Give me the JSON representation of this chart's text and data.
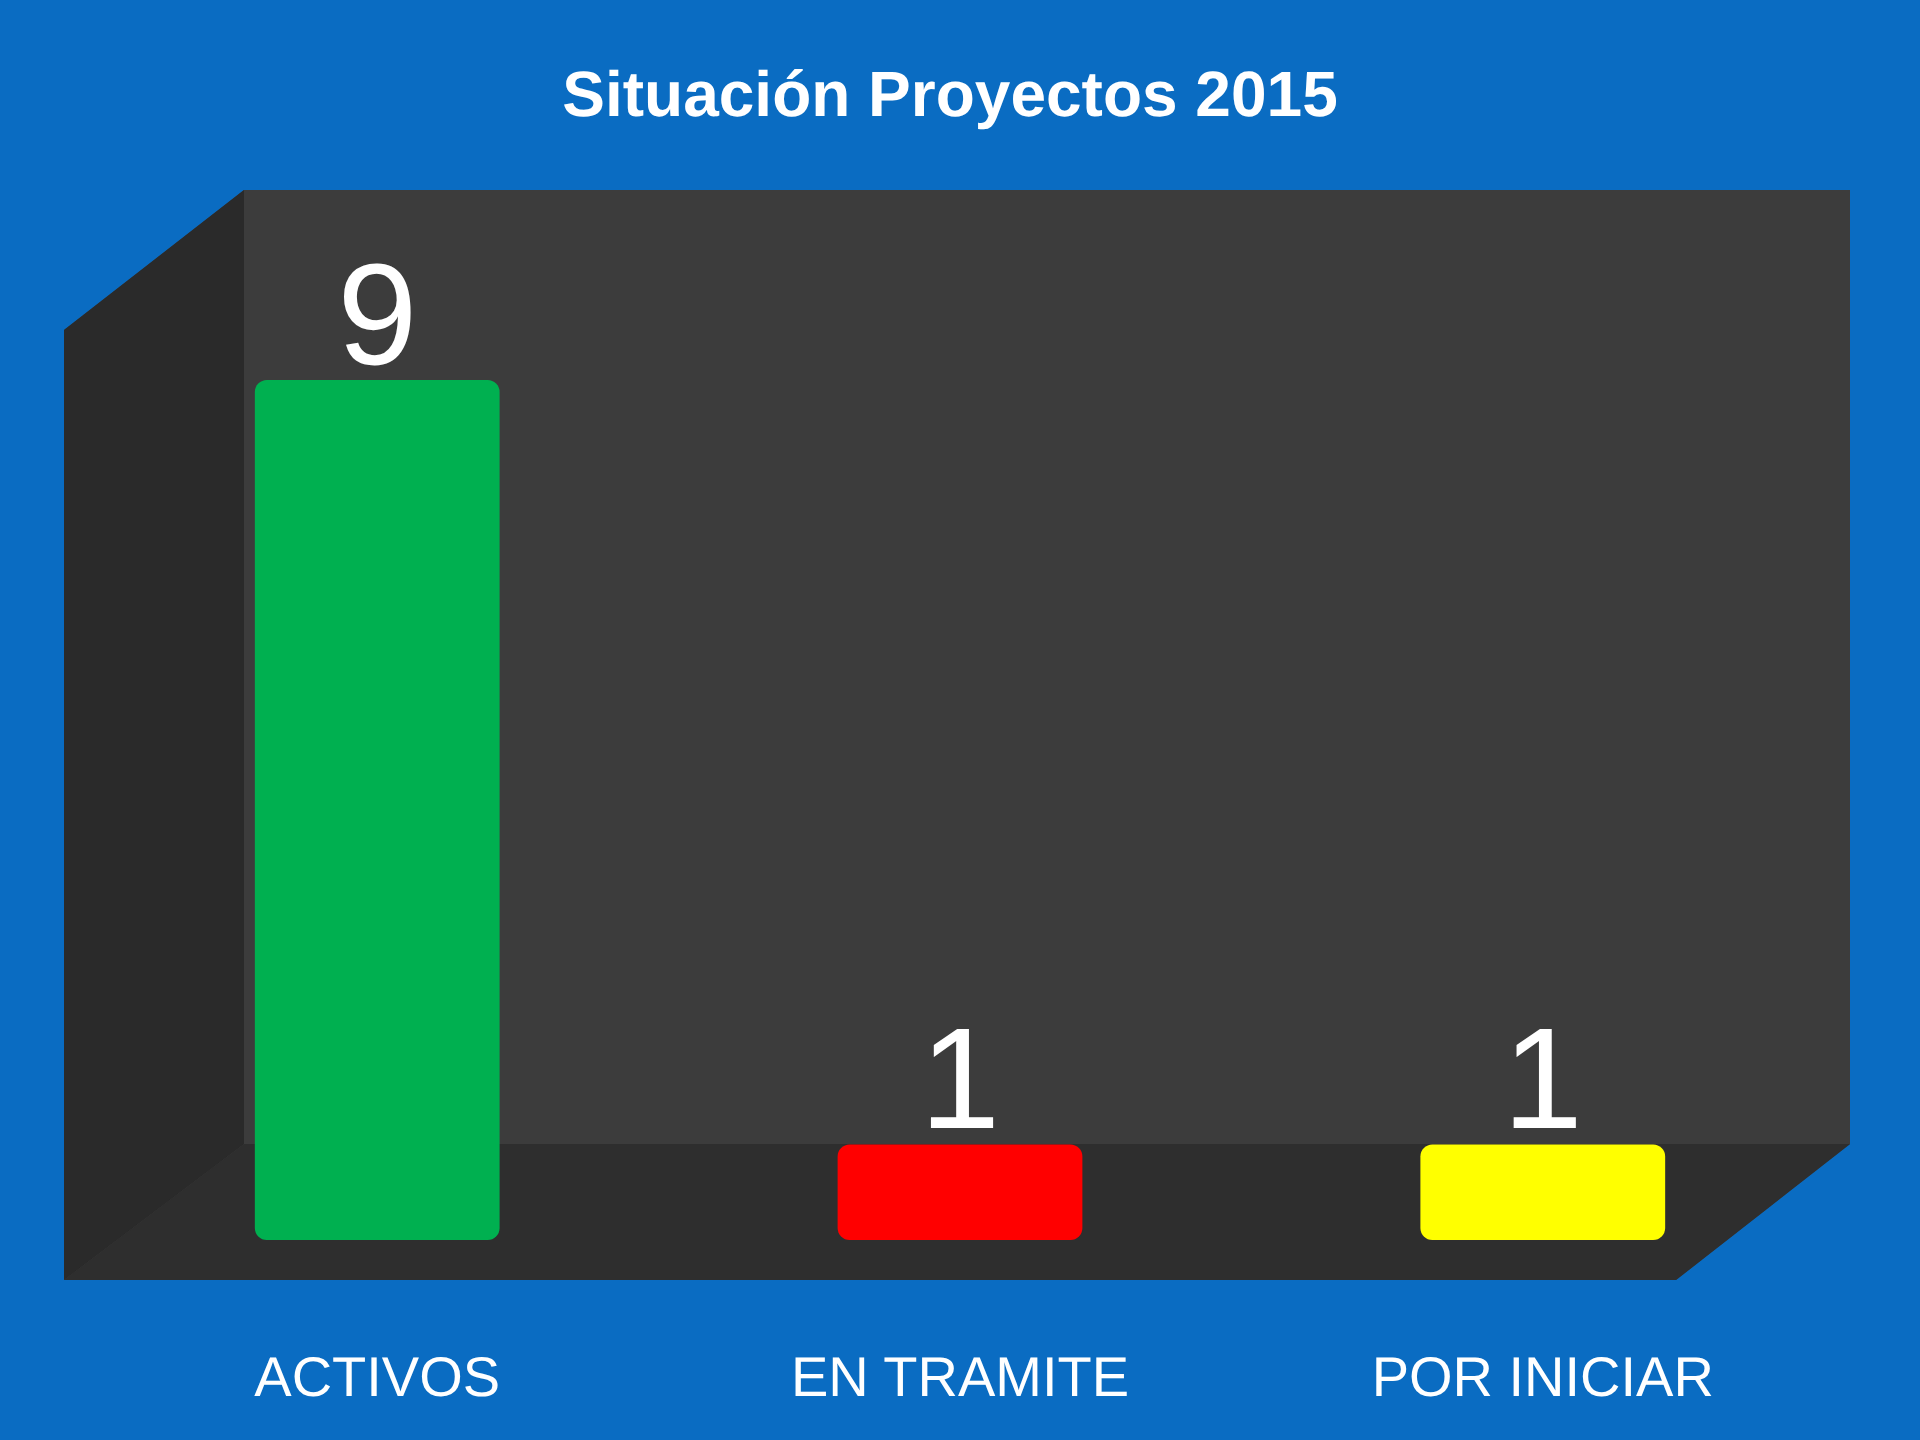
{
  "chart_data": {
    "type": "bar",
    "title": "Situación Proyectos 2015",
    "categories": [
      "ACTIVOS",
      "EN TRAMITE",
      "POR INICIAR"
    ],
    "values": [
      9,
      1,
      1
    ],
    "colors": [
      "#00b050",
      "#ff0000",
      "#ffff00"
    ],
    "data_labels": true
  }
}
